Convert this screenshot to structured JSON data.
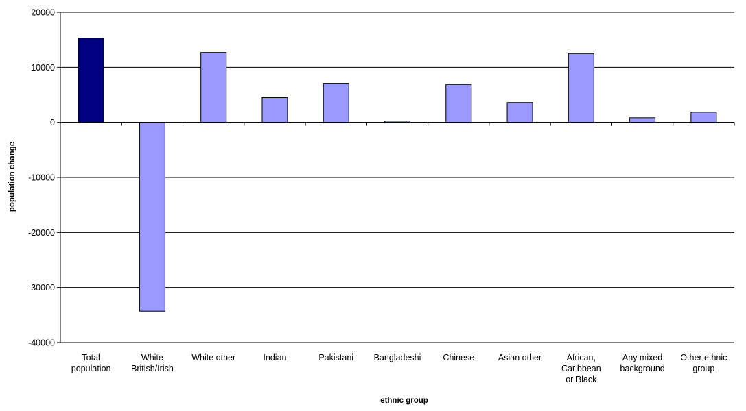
{
  "chart_data": {
    "type": "bar",
    "title": "",
    "xlabel": "ethnic group",
    "ylabel": "population change",
    "ylim": [
      -40000,
      20000
    ],
    "yticks": [
      20000,
      10000,
      0,
      -10000,
      -20000,
      -30000,
      -40000
    ],
    "grid": true,
    "legend": "none",
    "categories": [
      [
        "Total",
        "population"
      ],
      [
        "White",
        "British/Irish"
      ],
      [
        "White other"
      ],
      [
        "Indian"
      ],
      [
        "Pakistani"
      ],
      [
        "Bangladeshi"
      ],
      [
        "Chinese"
      ],
      [
        "Asian other"
      ],
      [
        "African,",
        "Caribbean",
        "or Black"
      ],
      [
        "Any mixed",
        "background"
      ],
      [
        "Other ethnic",
        "group"
      ]
    ],
    "values": [
      15300,
      -34300,
      12700,
      4500,
      7100,
      250,
      6900,
      3600,
      12500,
      850,
      1850
    ],
    "colors": {
      "highlight": "#000080",
      "bar": "#9999ff",
      "grid": "#000000"
    },
    "highlight_index": 0
  }
}
